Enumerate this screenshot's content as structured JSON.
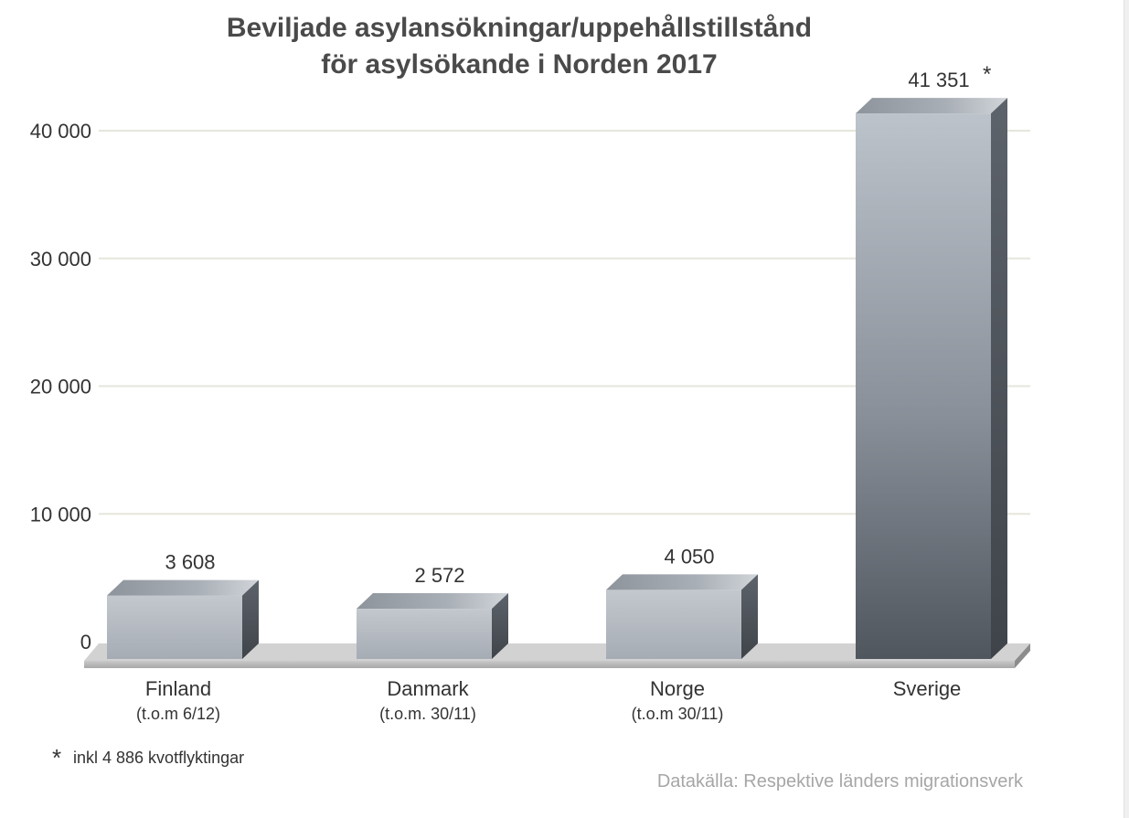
{
  "chart_data": {
    "type": "bar",
    "title_lines": [
      "Beviljade asylansökningar/uppehållstillstånd",
      "för asylsökande i Norden 2017"
    ],
    "categories": [
      "Finland",
      "Danmark",
      "Norge",
      "Sverige"
    ],
    "category_notes": [
      "(t.o.m 6/12)",
      "(t.o.m. 30/11)",
      "(t.o.m 30/11)",
      ""
    ],
    "values": [
      3608,
      2572,
      4050,
      41351
    ],
    "value_labels": [
      "3 608",
      "2 572",
      "4 050",
      "41 351"
    ],
    "value_markers": [
      "",
      "",
      "",
      "*"
    ],
    "yticks": [
      0,
      10000,
      20000,
      30000,
      40000
    ],
    "ytick_labels": [
      "0",
      "10 000",
      "20 000",
      "30 000",
      "40 000"
    ],
    "ylim": [
      0,
      40000
    ],
    "grid": true,
    "footnote_marker": "*",
    "footnote": "inkl 4 886 kvotflyktingar",
    "source": "Datakälla: Respektive länders migrationsverk",
    "colors": {
      "title": "#4a4a4a",
      "text": "#333333",
      "source": "#a6a6a6",
      "grid": "#e6e6dc",
      "bar_light": "#c4c9cf",
      "bar_dark": "#585e66",
      "sverige_light": "#bcc3cb",
      "sverige_dark": "#4f555d"
    }
  }
}
